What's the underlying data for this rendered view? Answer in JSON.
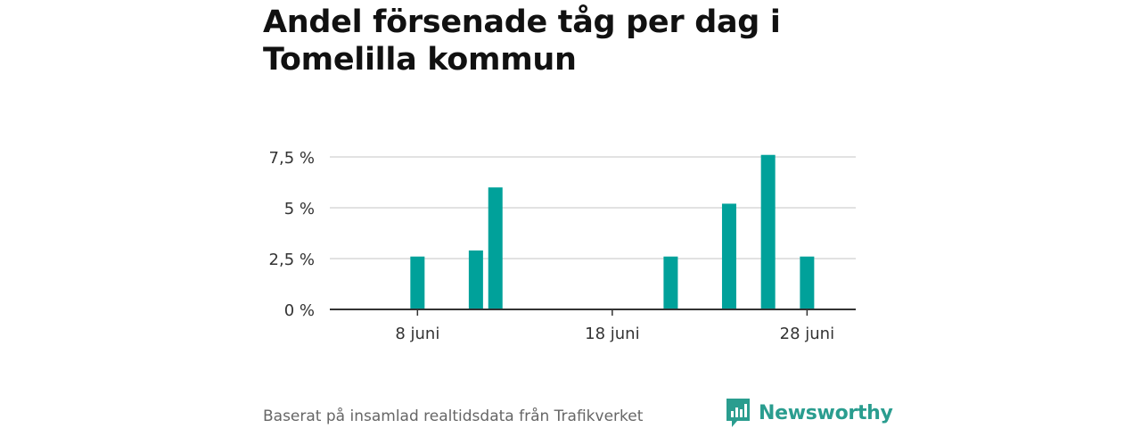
{
  "header": {
    "title": "Andel försenade tåg per dag i Tomelilla kommun"
  },
  "footer": {
    "source": "Baserat på insamlad realtidsdata från Trafikverket",
    "brand": "Newsworthy"
  },
  "colors": {
    "bar": "#00a19a",
    "brand": "#2a9d8f",
    "grid": "#d9d9d9",
    "axis": "#333333",
    "text": "#333333"
  },
  "chart_data": {
    "type": "bar",
    "x_unit": "day of June",
    "x": [
      4,
      5,
      6,
      7,
      8,
      9,
      10,
      11,
      12,
      13,
      14,
      15,
      16,
      17,
      18,
      19,
      20,
      21,
      22,
      23,
      24,
      25,
      26,
      27,
      28,
      29,
      30
    ],
    "values": [
      0,
      0,
      0,
      0,
      2.6,
      0,
      0,
      2.9,
      6.0,
      0,
      0,
      0,
      0,
      0,
      0,
      0,
      0,
      2.6,
      0,
      0,
      5.2,
      0,
      7.6,
      0,
      2.6,
      0,
      0
    ],
    "yticks": [
      0,
      2.5,
      5,
      7.5
    ],
    "ytick_labels": [
      "0 %",
      "2,5 %",
      "5 %",
      "7,5 %"
    ],
    "xticks": [
      8,
      18,
      28
    ],
    "xtick_labels": [
      "8 juni",
      "18 juni",
      "28 juni"
    ],
    "ylim": [
      0,
      7.5
    ],
    "grid": true
  }
}
